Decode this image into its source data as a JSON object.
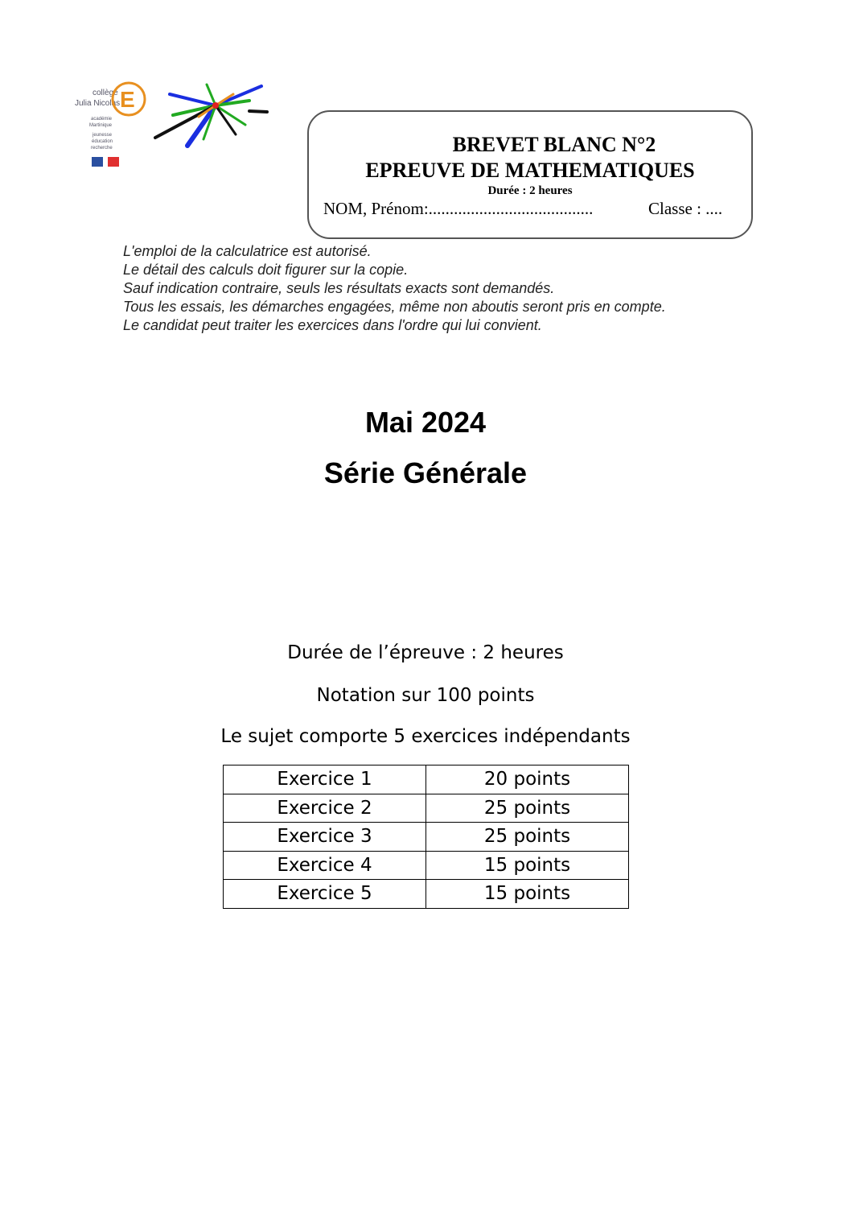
{
  "logo": {
    "college": "collège Julia Nicolas",
    "academie": "académie Martinique",
    "ministere": "jeunesse éducation recherche"
  },
  "header": {
    "title": "BREVET BLANC N°2",
    "subject": "EPREUVE DE MATHEMATIQUES",
    "duration": "Durée : 2 heures",
    "name_field": "NOM, Prénom:.......................................",
    "class_field": "Classe : ...."
  },
  "instructions": [
    "L'emploi de la calculatrice est autorisé.",
    "Le détail des calculs doit figurer sur la copie.",
    "Sauf indication contraire, seuls les résultats exacts sont demandés.",
    "Tous les essais, les démarches engagées, même non aboutis seront pris en compte.",
    "Le candidat peut traiter les exercices dans l'ordre qui lui convient."
  ],
  "date": "Mai 2024",
  "serie": "Série Générale",
  "duration_text": "Durée de l’épreuve : 2 heures",
  "notation": "Notation sur 100 points",
  "exercise_count": "Le sujet comporte 5 exercices indépendants",
  "table": [
    {
      "exercise": "Exercice 1",
      "points": "20 points"
    },
    {
      "exercise": "Exercice 2",
      "points": "25 points"
    },
    {
      "exercise": "Exercice 3",
      "points": "25 points"
    },
    {
      "exercise": "Exercice 4",
      "points": "15 points"
    },
    {
      "exercise": "Exercice 5",
      "points": "15 points"
    }
  ]
}
